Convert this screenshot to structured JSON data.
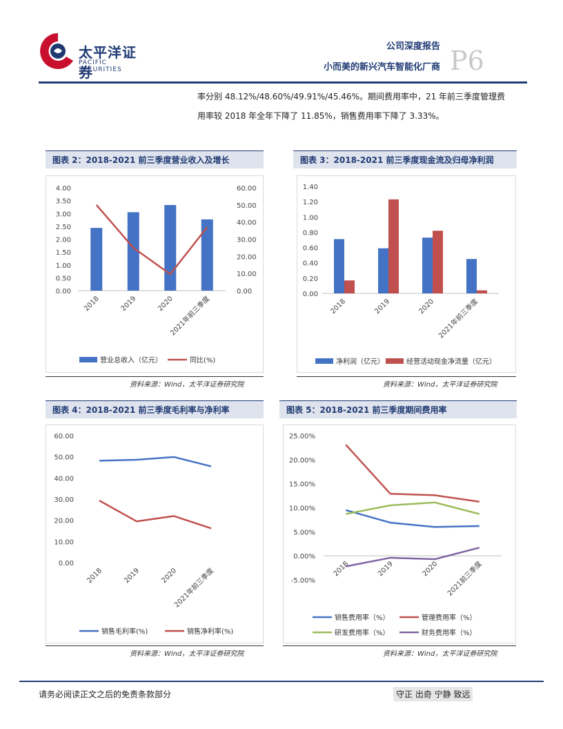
{
  "header": {
    "logo_cn": "太平洋证券",
    "logo_en": "PACIFIC SECURITIES",
    "report_type": "公司深度报告",
    "report_title": "小而美的新兴汽车智能化厂商",
    "page_label": "P6"
  },
  "body": {
    "line1": "率分别 48.12%/48.60%/49.91%/45.46%。期间费用率中，21 年前三季度管理费",
    "line2": "用率较 2018 年全年下降了 11.85%，销售费用率下降了 3.33%。"
  },
  "charts": {
    "c2_title": "图表 2：2018-2021 前三季度营业收入及增长",
    "c3_title": "图表 3：2018-2021 前三季度现金流及归母净利润",
    "c4_title": "图表 4：2018-2021 前三季度毛利率与净利率",
    "c5_title": "图表 5：2018-2021 前三季度期间费用率",
    "source": "资料来源：Wind，太平洋证券研究院"
  },
  "chart_data": [
    {
      "type": "bar",
      "categories": [
        "2018",
        "2019",
        "2020",
        "2021年前三季度"
      ],
      "series": [
        {
          "name": "营业总收入（亿元）",
          "values": [
            2.44,
            3.05,
            3.33,
            2.77
          ],
          "axis": "left",
          "kind": "bar",
          "color": "#4472c4"
        },
        {
          "name": "同比(%)",
          "values": [
            50.0,
            25.0,
            9.6,
            37.0
          ],
          "axis": "right",
          "kind": "line",
          "color": "#c0504d"
        }
      ],
      "y_left_ticks": [
        "4.00",
        "3.50",
        "3.00",
        "2.50",
        "2.00",
        "1.50",
        "1.00",
        "0.50",
        "0.00"
      ],
      "y_right_ticks": [
        "60.00",
        "50.00",
        "40.00",
        "30.00",
        "20.00",
        "10.00",
        "0.00"
      ],
      "ylim_left": [
        0,
        4
      ],
      "ylim_right": [
        0,
        60
      ]
    },
    {
      "type": "bar",
      "categories": [
        "2018",
        "2019",
        "2020",
        "2021年前三季度"
      ],
      "series": [
        {
          "name": "净利润（亿元）",
          "values": [
            0.71,
            0.59,
            0.73,
            0.45
          ],
          "color": "#4472c4"
        },
        {
          "name": "经营活动现金净流量（亿元）",
          "values": [
            0.17,
            1.23,
            0.82,
            0.04
          ],
          "color": "#c0504d"
        }
      ],
      "y_ticks": [
        "1.40",
        "1.20",
        "1.00",
        "0.80",
        "0.60",
        "0.40",
        "0.20",
        "0.00"
      ],
      "ylim": [
        0,
        1.4
      ]
    },
    {
      "type": "line",
      "categories": [
        "2018",
        "2019",
        "2020",
        "2021年前三季度"
      ],
      "series": [
        {
          "name": "销售毛利率(%)",
          "values": [
            48.12,
            48.6,
            49.91,
            45.46
          ],
          "color": "#4472c4"
        },
        {
          "name": "销售净利率(%)",
          "values": [
            29.3,
            19.5,
            22.0,
            16.2
          ],
          "color": "#c0504d"
        }
      ],
      "y_ticks": [
        "60.00",
        "50.00",
        "40.00",
        "30.00",
        "20.00",
        "10.00",
        "0.00"
      ],
      "ylim": [
        0,
        60
      ]
    },
    {
      "type": "line",
      "categories": [
        "2018",
        "2019",
        "2020",
        "2021前三季度"
      ],
      "series": [
        {
          "name": "销售费用率（%）",
          "values": [
            9.5,
            6.9,
            6.0,
            6.2
          ],
          "color": "#4472c4"
        },
        {
          "name": "管理费用率（%）",
          "values": [
            23.1,
            12.9,
            12.6,
            11.25
          ],
          "color": "#c0504d"
        },
        {
          "name": "研发费用率（%）",
          "values": [
            8.7,
            10.5,
            11.1,
            8.7
          ],
          "color": "#9bbb59"
        },
        {
          "name": "财务费用率（%）",
          "values": [
            -2.2,
            -0.4,
            -0.7,
            1.7
          ],
          "color": "#8064a2"
        }
      ],
      "y_ticks": [
        "25.00%",
        "20.00%",
        "15.00%",
        "10.00%",
        "5.00%",
        "0.00%",
        "-5.00%"
      ],
      "ylim": [
        -5,
        25
      ]
    }
  ],
  "footer": {
    "disclaimer": "请务必阅读正文之后的免责条款部分",
    "motto": "守正 出奇 宁静 致远"
  }
}
